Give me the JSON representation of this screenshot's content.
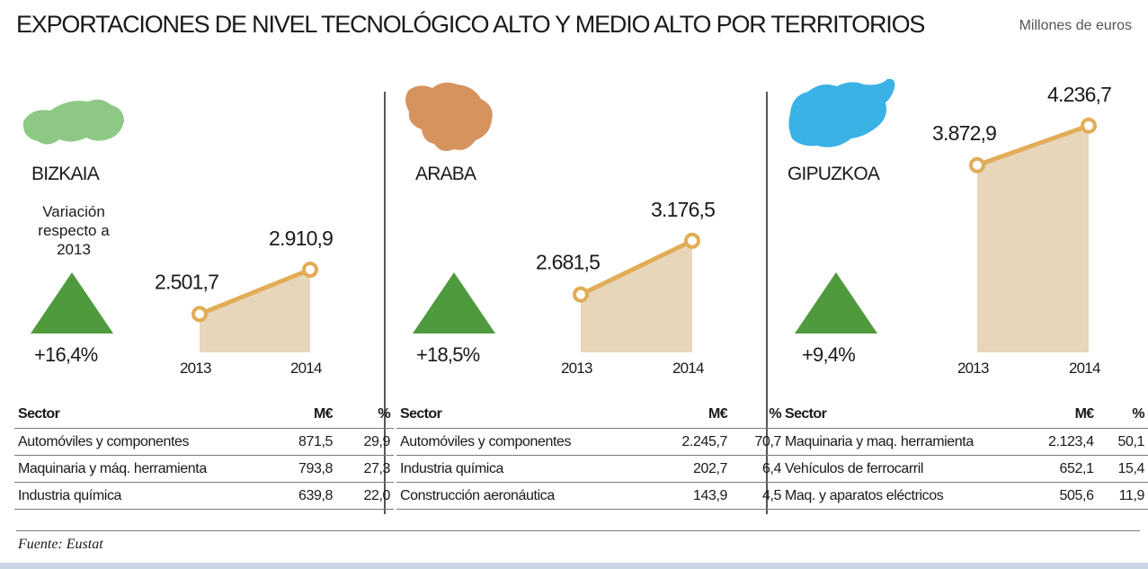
{
  "title": "EXPORTACIONES DE NIVEL TECNOLÓGICO ALTO Y MEDIO ALTO POR TERRITORIOS",
  "units": "Millones de euros",
  "variation_note": "Variación respecto a 2013",
  "source": "Fuente: Eustat",
  "colors": {
    "line": "#e1ad56",
    "area": "#e8d6bb",
    "triangle": "#4e9a3c",
    "map_bizkaia": "#8dc884",
    "map_araba": "#d6935e",
    "map_gipuzkoa": "#3ab2e6"
  },
  "table_headers": {
    "sector": "Sector",
    "value": "M€",
    "pct": "%"
  },
  "chart_data": [
    {
      "type": "area",
      "title": "BIZKAIA",
      "variation": "+16,4%",
      "categories": [
        "2013",
        "2014"
      ],
      "values": [
        2501.7,
        2910.9
      ],
      "labels": [
        "2.501,7",
        "2.910,9"
      ],
      "table": [
        {
          "sector": "Automóviles y componentes",
          "value": "871,5",
          "pct": "29,9"
        },
        {
          "sector": "Maquinaria y máq. herramienta",
          "value": "793,8",
          "pct": "27,3"
        },
        {
          "sector": "Industria química",
          "value": "639,8",
          "pct": "22,0"
        }
      ]
    },
    {
      "type": "area",
      "title": "ARABA",
      "variation": "+18,5%",
      "categories": [
        "2013",
        "2014"
      ],
      "values": [
        2681.5,
        3176.5
      ],
      "labels": [
        "2.681,5",
        "3.176,5"
      ],
      "table": [
        {
          "sector": "Automóviles y componentes",
          "value": "2.245,7",
          "pct": "70,7"
        },
        {
          "sector": "Industria química",
          "value": "202,7",
          "pct": "6,4"
        },
        {
          "sector": "Construcción aeronáutica",
          "value": "143,9",
          "pct": "4,5"
        }
      ]
    },
    {
      "type": "area",
      "title": "GIPUZKOA",
      "variation": "+9,4%",
      "categories": [
        "2013",
        "2014"
      ],
      "values": [
        3872.9,
        4236.7
      ],
      "labels": [
        "3.872,9",
        "4.236,7"
      ],
      "table": [
        {
          "sector": "Maquinaria y maq. herramienta",
          "value": "2.123,4",
          "pct": "50,1"
        },
        {
          "sector": "Vehículos de ferrocarril",
          "value": "652,1",
          "pct": "15,4"
        },
        {
          "sector": "Maq. y aparatos eléctricos",
          "value": "505,6",
          "pct": "11,9"
        }
      ]
    }
  ]
}
